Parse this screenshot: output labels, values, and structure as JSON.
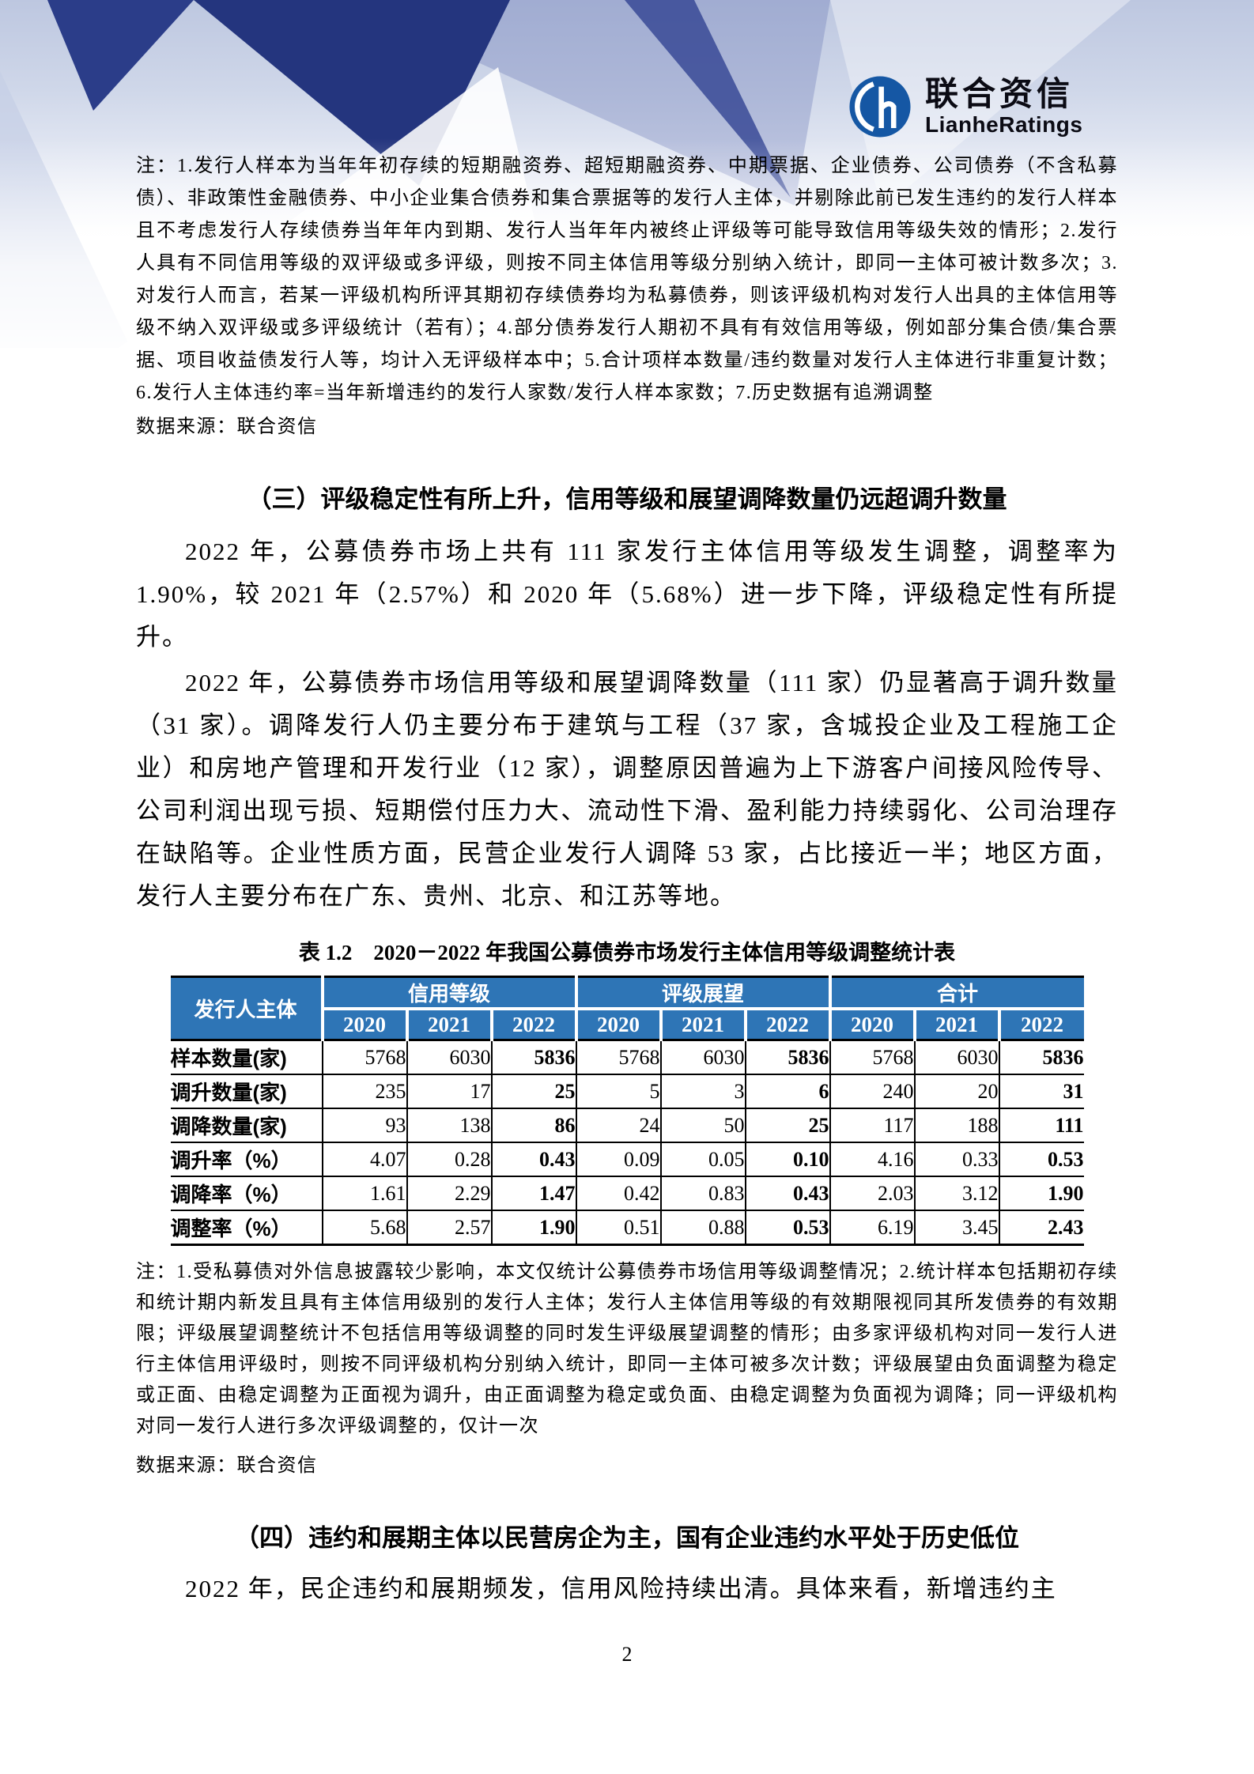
{
  "page_number": "2",
  "logo": {
    "zh": "联合资信",
    "en": "LianheRatings"
  },
  "colors": {
    "table_header_blue": "#2E75B6",
    "logo_icon_blue": "#1557A4",
    "decor_dark_navy": "#24357E",
    "decor_light_periwinkle": "#C7D0E6"
  },
  "notes_top": {
    "text": "注：1.发行人样本为当年年初存续的短期融资券、超短期融资券、中期票据、企业债券、公司债券（不含私募债）、非政策性金融债券、中小企业集合债券和集合票据等的发行人主体，并剔除此前已发生违约的发行人样本且不考虑发行人存续债券当年年内到期、发行人当年年内被终止评级等可能导致信用等级失效的情形；2.发行人具有不同信用等级的双评级或多评级，则按不同主体信用等级分别纳入统计，即同一主体可被计数多次；3.对发行人而言，若某一评级机构所评其期初存续债券均为私募债券，则该评级机构对发行人出具的主体信用等级不纳入双评级或多评级统计（若有）；4.部分债券发行人期初不具有有效信用等级，例如部分集合债/集合票据、项目收益债发行人等，均计入无评级样本中；5.合计项样本数量/违约数量对发行人主体进行非重复计数；6.发行人主体违约率=当年新增违约的发行人家数/发行人样本家数；7.历史数据有追溯调整",
    "source": "数据来源：联合资信"
  },
  "section3": {
    "heading": "（三）评级稳定性有所上升，信用等级和展望调降数量仍远超调升数量",
    "para1": "2022 年，公募债券市场上共有 111 家发行主体信用等级发生调整，调整率为 1.90%，较 2021 年（2.57%）和 2020 年（5.68%）进一步下降，评级稳定性有所提升。",
    "para2": "2022 年，公募债券市场信用等级和展望调降数量（111 家）仍显著高于调升数量（31 家）。调降发行人仍主要分布于建筑与工程（37 家，含城投企业及工程施工企业）和房地产管理和开发行业（12 家），调整原因普遍为上下游客户间接风险传导、公司利润出现亏损、短期偿付压力大、流动性下滑、盈利能力持续弱化、公司治理存在缺陷等。企业性质方面，民营企业发行人调降 53 家，占比接近一半；地区方面，发行人主要分布在广东、贵州、北京、和江苏等地。"
  },
  "table": {
    "title": "表 1.2　2020－2022 年我国公募债券市场发行主体信用等级调整统计表",
    "row_header": "发行人主体",
    "groups": [
      "信用等级",
      "评级展望",
      "合计"
    ],
    "years": [
      "2020",
      "2021",
      "2022"
    ],
    "rows": [
      {
        "label": "样本数量(家)",
        "values": [
          "5768",
          "6030",
          "5836",
          "5768",
          "6030",
          "5836",
          "5768",
          "6030",
          "5836"
        ]
      },
      {
        "label": "调升数量(家)",
        "values": [
          "235",
          "17",
          "25",
          "5",
          "3",
          "6",
          "240",
          "20",
          "31"
        ]
      },
      {
        "label": "调降数量(家)",
        "values": [
          "93",
          "138",
          "86",
          "24",
          "50",
          "25",
          "117",
          "188",
          "111"
        ]
      },
      {
        "label": "调升率（%）",
        "values": [
          "4.07",
          "0.28",
          "0.43",
          "0.09",
          "0.05",
          "0.10",
          "4.16",
          "0.33",
          "0.53"
        ]
      },
      {
        "label": "调降率（%）",
        "values": [
          "1.61",
          "2.29",
          "1.47",
          "0.42",
          "0.83",
          "0.43",
          "2.03",
          "3.12",
          "1.90"
        ]
      },
      {
        "label": "调整率（%）",
        "values": [
          "5.68",
          "2.57",
          "1.90",
          "0.51",
          "0.88",
          "0.53",
          "6.19",
          "3.45",
          "2.43"
        ]
      }
    ],
    "notes": "注：1.受私募债对外信息披露较少影响，本文仅统计公募债券市场信用等级调整情况；2.统计样本包括期初存续和统计期内新发且具有主体信用级别的发行人主体；发行人主体信用等级的有效期限视同其所发债券的有效期限；评级展望调整统计不包括信用等级调整的同时发生评级展望调整的情形；由多家评级机构对同一发行人进行主体信用评级时，则按不同评级机构分别纳入统计，即同一主体可被多次计数；评级展望由负面调整为稳定或正面、由稳定调整为正面视为调升，由正面调整为稳定或负面、由稳定调整为负面视为调降；同一评级机构对同一发行人进行多次评级调整的，仅计一次",
    "source": "数据来源：联合资信"
  },
  "section4": {
    "heading": "（四）违约和展期主体以民营房企为主，国有企业违约水平处于历史低位",
    "para1": "2022 年，民企违约和展期频发，信用风险持续出清。具体来看，新增违约主"
  }
}
